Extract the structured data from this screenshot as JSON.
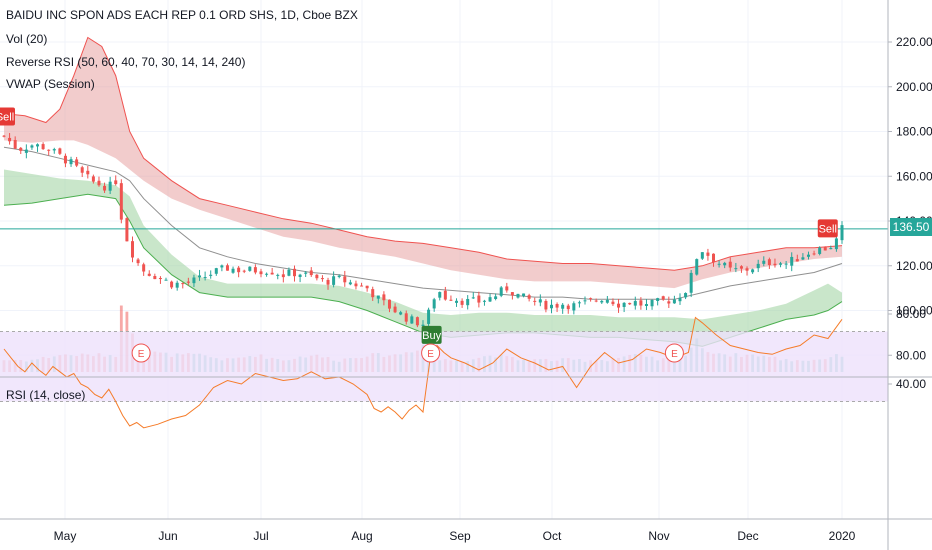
{
  "header": {
    "symbol_title": "BAIDU INC SPON ADS EACH REP 0.1 ORD SHS, 1D, Cboe BZX",
    "vol_label": "Vol (20)",
    "rrsi_label": "Reverse RSI (50, 60, 40, 70, 30, 14, 14, 240)",
    "vwap_label": "VWAP (Session)",
    "rsi_pane_label": "RSI (14, close)"
  },
  "price_axis": {
    "ticks": [
      "220.00",
      "200.00",
      "180.00",
      "160.00",
      "140.00",
      "120.00",
      "100.00",
      "80.00"
    ],
    "last_price": "136.50"
  },
  "rsi_axis": {
    "ticks": [
      "80.00",
      "40.00"
    ]
  },
  "time_axis": {
    "labels": [
      "May",
      "Jun",
      "Jul",
      "Aug",
      "Sep",
      "Oct",
      "Nov",
      "Dec",
      "2020"
    ]
  },
  "signals": {
    "sell_label": "Sell",
    "buy_label": "Buy",
    "earnings_label": "E"
  },
  "colors": {
    "up": "#26a69a",
    "down": "#ef5350",
    "red_band": "#e8a3a3",
    "green_band": "#a5d6a7",
    "rsi_band": "#ede1fb",
    "rsi_line": "#f57c2a",
    "ma_line": "#909090",
    "last_price": "#26a69a",
    "sell": "#e53935",
    "buy": "#2e7d32"
  },
  "chart_data": {
    "type": "candlestick",
    "price_ylim": [
      75,
      230
    ],
    "rsi_ylim": [
      10,
      90
    ],
    "rsi_band": [
      30,
      70
    ],
    "earnings_dates": [
      "2019-05-16",
      "2019-08-19",
      "2019-11-07"
    ],
    "signals": [
      {
        "label": "Sell",
        "date": "2019-04-01",
        "price": 180
      },
      {
        "label": "Buy",
        "date": "2019-08-19",
        "price": 94
      },
      {
        "label": "Sell",
        "date": "2019-12-27",
        "price": 130
      }
    ],
    "close_path": [
      [
        0,
        178
      ],
      [
        4,
        172
      ],
      [
        8,
        174
      ],
      [
        12,
        173
      ],
      [
        16,
        169
      ],
      [
        20,
        165
      ],
      [
        22,
        161
      ],
      [
        26,
        157
      ],
      [
        30,
        155
      ],
      [
        32,
        158
      ],
      [
        34,
        138
      ],
      [
        36,
        128
      ],
      [
        38,
        122
      ],
      [
        40,
        118
      ],
      [
        44,
        115
      ],
      [
        48,
        112
      ],
      [
        52,
        112
      ],
      [
        56,
        114
      ],
      [
        60,
        117
      ],
      [
        64,
        119
      ],
      [
        68,
        118
      ],
      [
        72,
        118
      ],
      [
        76,
        118
      ],
      [
        80,
        116
      ],
      [
        84,
        117
      ],
      [
        88,
        115
      ],
      [
        92,
        113
      ],
      [
        96,
        114
      ],
      [
        100,
        112
      ],
      [
        104,
        110
      ],
      [
        108,
        104
      ],
      [
        112,
        100
      ],
      [
        116,
        96
      ],
      [
        120,
        94
      ],
      [
        122,
        100
      ],
      [
        124,
        110
      ],
      [
        126,
        106
      ],
      [
        128,
        106
      ],
      [
        132,
        104
      ],
      [
        136,
        104
      ],
      [
        140,
        106
      ],
      [
        144,
        110
      ],
      [
        148,
        106
      ],
      [
        152,
        104
      ],
      [
        156,
        102
      ],
      [
        160,
        103
      ],
      [
        164,
        102
      ],
      [
        168,
        104
      ],
      [
        172,
        106
      ],
      [
        176,
        103
      ],
      [
        180,
        104
      ],
      [
        184,
        102
      ],
      [
        188,
        104
      ],
      [
        192,
        105
      ],
      [
        196,
        110
      ],
      [
        198,
        123
      ],
      [
        200,
        127
      ],
      [
        204,
        122
      ],
      [
        208,
        118
      ],
      [
        212,
        118
      ],
      [
        216,
        120
      ],
      [
        220,
        122
      ],
      [
        224,
        121
      ],
      [
        228,
        124
      ],
      [
        232,
        127
      ],
      [
        236,
        128
      ],
      [
        238,
        130
      ],
      [
        240,
        136.5
      ]
    ],
    "red_upper": [
      [
        0,
        188
      ],
      [
        6,
        187
      ],
      [
        12,
        184
      ],
      [
        16,
        190
      ],
      [
        20,
        205
      ],
      [
        24,
        222
      ],
      [
        28,
        218
      ],
      [
        32,
        205
      ],
      [
        36,
        180
      ],
      [
        40,
        168
      ],
      [
        48,
        158
      ],
      [
        56,
        150
      ],
      [
        64,
        147
      ],
      [
        72,
        144
      ],
      [
        80,
        141
      ],
      [
        88,
        139
      ],
      [
        96,
        136
      ],
      [
        104,
        133
      ],
      [
        112,
        131
      ],
      [
        120,
        130
      ],
      [
        128,
        128
      ],
      [
        136,
        126
      ],
      [
        144,
        123
      ],
      [
        152,
        122
      ],
      [
        160,
        121
      ],
      [
        168,
        121
      ],
      [
        176,
        120
      ],
      [
        184,
        119
      ],
      [
        192,
        118
      ],
      [
        200,
        120
      ],
      [
        208,
        124
      ],
      [
        216,
        126
      ],
      [
        224,
        128
      ],
      [
        232,
        128
      ],
      [
        240,
        129
      ]
    ],
    "red_lower": [
      [
        0,
        176
      ],
      [
        8,
        175
      ],
      [
        16,
        176
      ],
      [
        20,
        176
      ],
      [
        24,
        174
      ],
      [
        32,
        168
      ],
      [
        40,
        158
      ],
      [
        48,
        150
      ],
      [
        56,
        145
      ],
      [
        64,
        141
      ],
      [
        72,
        137
      ],
      [
        80,
        133
      ],
      [
        88,
        131
      ],
      [
        96,
        128
      ],
      [
        104,
        126
      ],
      [
        112,
        124
      ],
      [
        120,
        121
      ],
      [
        128,
        118
      ],
      [
        136,
        116
      ],
      [
        144,
        114
      ],
      [
        152,
        113
      ],
      [
        160,
        113
      ],
      [
        168,
        113
      ],
      [
        176,
        112
      ],
      [
        184,
        111
      ],
      [
        192,
        110
      ],
      [
        200,
        114
      ],
      [
        208,
        117
      ],
      [
        216,
        119
      ],
      [
        224,
        121
      ],
      [
        232,
        123
      ],
      [
        240,
        124
      ]
    ],
    "green_upper": [
      [
        0,
        163
      ],
      [
        8,
        161
      ],
      [
        16,
        159
      ],
      [
        24,
        158
      ],
      [
        32,
        156
      ],
      [
        36,
        151
      ],
      [
        40,
        138
      ],
      [
        48,
        125
      ],
      [
        56,
        115
      ],
      [
        64,
        112
      ],
      [
        72,
        112
      ],
      [
        80,
        112
      ],
      [
        88,
        112
      ],
      [
        96,
        111
      ],
      [
        104,
        108
      ],
      [
        112,
        104
      ],
      [
        120,
        99
      ],
      [
        128,
        98
      ],
      [
        136,
        99
      ],
      [
        144,
        99
      ],
      [
        152,
        98
      ],
      [
        160,
        98
      ],
      [
        168,
        98
      ],
      [
        176,
        97
      ],
      [
        184,
        97
      ],
      [
        192,
        97
      ],
      [
        200,
        96
      ],
      [
        208,
        98
      ],
      [
        216,
        100
      ],
      [
        224,
        103
      ],
      [
        232,
        109
      ],
      [
        236,
        112
      ],
      [
        240,
        108
      ]
    ],
    "green_lower": [
      [
        0,
        147
      ],
      [
        8,
        148
      ],
      [
        16,
        150
      ],
      [
        24,
        152
      ],
      [
        32,
        150
      ],
      [
        36,
        140
      ],
      [
        40,
        128
      ],
      [
        48,
        116
      ],
      [
        56,
        108
      ],
      [
        64,
        106
      ],
      [
        72,
        106
      ],
      [
        80,
        106
      ],
      [
        88,
        106
      ],
      [
        96,
        104
      ],
      [
        104,
        100
      ],
      [
        112,
        95
      ],
      [
        120,
        90
      ],
      [
        128,
        88
      ],
      [
        136,
        89
      ],
      [
        144,
        90
      ],
      [
        152,
        90
      ],
      [
        160,
        89
      ],
      [
        168,
        88
      ],
      [
        176,
        88
      ],
      [
        184,
        87
      ],
      [
        192,
        86
      ],
      [
        200,
        84
      ],
      [
        208,
        88
      ],
      [
        216,
        92
      ],
      [
        224,
        96
      ],
      [
        232,
        98
      ],
      [
        236,
        100
      ],
      [
        240,
        104
      ]
    ],
    "ma_line": [
      [
        0,
        173
      ],
      [
        8,
        171
      ],
      [
        16,
        168
      ],
      [
        24,
        165
      ],
      [
        32,
        162
      ],
      [
        36,
        158
      ],
      [
        40,
        150
      ],
      [
        48,
        138
      ],
      [
        56,
        128
      ],
      [
        64,
        124
      ],
      [
        72,
        121
      ],
      [
        80,
        119
      ],
      [
        88,
        117
      ],
      [
        96,
        116
      ],
      [
        104,
        114
      ],
      [
        112,
        112
      ],
      [
        120,
        110
      ],
      [
        128,
        109
      ],
      [
        136,
        108
      ],
      [
        144,
        107
      ],
      [
        152,
        106
      ],
      [
        160,
        106
      ],
      [
        168,
        105
      ],
      [
        176,
        105
      ],
      [
        184,
        105
      ],
      [
        192,
        105
      ],
      [
        200,
        108
      ],
      [
        208,
        111
      ],
      [
        216,
        113
      ],
      [
        224,
        115
      ],
      [
        232,
        117
      ],
      [
        240,
        121
      ]
    ],
    "volume_path": [
      [
        0,
        2
      ],
      [
        8,
        2
      ],
      [
        16,
        3
      ],
      [
        24,
        3
      ],
      [
        32,
        3
      ],
      [
        34,
        15
      ],
      [
        36,
        10
      ],
      [
        38,
        4
      ],
      [
        48,
        3
      ],
      [
        56,
        3
      ],
      [
        64,
        2
      ],
      [
        72,
        3
      ],
      [
        80,
        2
      ],
      [
        88,
        3
      ],
      [
        96,
        2
      ],
      [
        104,
        3
      ],
      [
        112,
        3
      ],
      [
        118,
        4
      ],
      [
        120,
        5
      ],
      [
        124,
        2
      ],
      [
        132,
        2
      ],
      [
        140,
        3
      ],
      [
        148,
        2
      ],
      [
        156,
        2
      ],
      [
        164,
        2
      ],
      [
        172,
        2
      ],
      [
        180,
        3
      ],
      [
        188,
        2
      ],
      [
        196,
        3
      ],
      [
        198,
        7
      ],
      [
        200,
        4
      ],
      [
        208,
        3
      ],
      [
        216,
        3
      ],
      [
        224,
        2
      ],
      [
        232,
        2
      ],
      [
        240,
        3
      ]
    ],
    "rsi_path": [
      [
        0,
        60
      ],
      [
        2,
        55
      ],
      [
        4,
        50
      ],
      [
        6,
        47
      ],
      [
        8,
        52
      ],
      [
        10,
        48
      ],
      [
        12,
        45
      ],
      [
        14,
        50
      ],
      [
        16,
        47
      ],
      [
        18,
        44
      ],
      [
        20,
        46
      ],
      [
        22,
        40
      ],
      [
        24,
        38
      ],
      [
        26,
        34
      ],
      [
        28,
        32
      ],
      [
        30,
        37
      ],
      [
        32,
        30
      ],
      [
        34,
        22
      ],
      [
        36,
        16
      ],
      [
        38,
        18
      ],
      [
        40,
        15
      ],
      [
        44,
        17
      ],
      [
        48,
        20
      ],
      [
        52,
        22
      ],
      [
        56,
        28
      ],
      [
        60,
        38
      ],
      [
        64,
        42
      ],
      [
        68,
        40
      ],
      [
        72,
        46
      ],
      [
        76,
        44
      ],
      [
        80,
        42
      ],
      [
        84,
        43
      ],
      [
        88,
        47
      ],
      [
        92,
        43
      ],
      [
        96,
        44
      ],
      [
        100,
        40
      ],
      [
        104,
        34
      ],
      [
        106,
        26
      ],
      [
        108,
        24
      ],
      [
        110,
        27
      ],
      [
        112,
        24
      ],
      [
        114,
        20
      ],
      [
        116,
        25
      ],
      [
        118,
        28
      ],
      [
        120,
        24
      ],
      [
        122,
        54
      ],
      [
        124,
        62
      ],
      [
        126,
        58
      ],
      [
        128,
        55
      ],
      [
        132,
        52
      ],
      [
        136,
        48
      ],
      [
        140,
        52
      ],
      [
        144,
        60
      ],
      [
        148,
        55
      ],
      [
        152,
        52
      ],
      [
        156,
        48
      ],
      [
        160,
        50
      ],
      [
        164,
        38
      ],
      [
        168,
        50
      ],
      [
        172,
        58
      ],
      [
        176,
        52
      ],
      [
        180,
        54
      ],
      [
        184,
        60
      ],
      [
        188,
        58
      ],
      [
        192,
        55
      ],
      [
        196,
        58
      ],
      [
        198,
        78
      ],
      [
        200,
        75
      ],
      [
        204,
        68
      ],
      [
        208,
        62
      ],
      [
        212,
        60
      ],
      [
        216,
        58
      ],
      [
        220,
        57
      ],
      [
        224,
        60
      ],
      [
        228,
        62
      ],
      [
        232,
        68
      ],
      [
        236,
        66
      ],
      [
        240,
        77
      ]
    ]
  }
}
